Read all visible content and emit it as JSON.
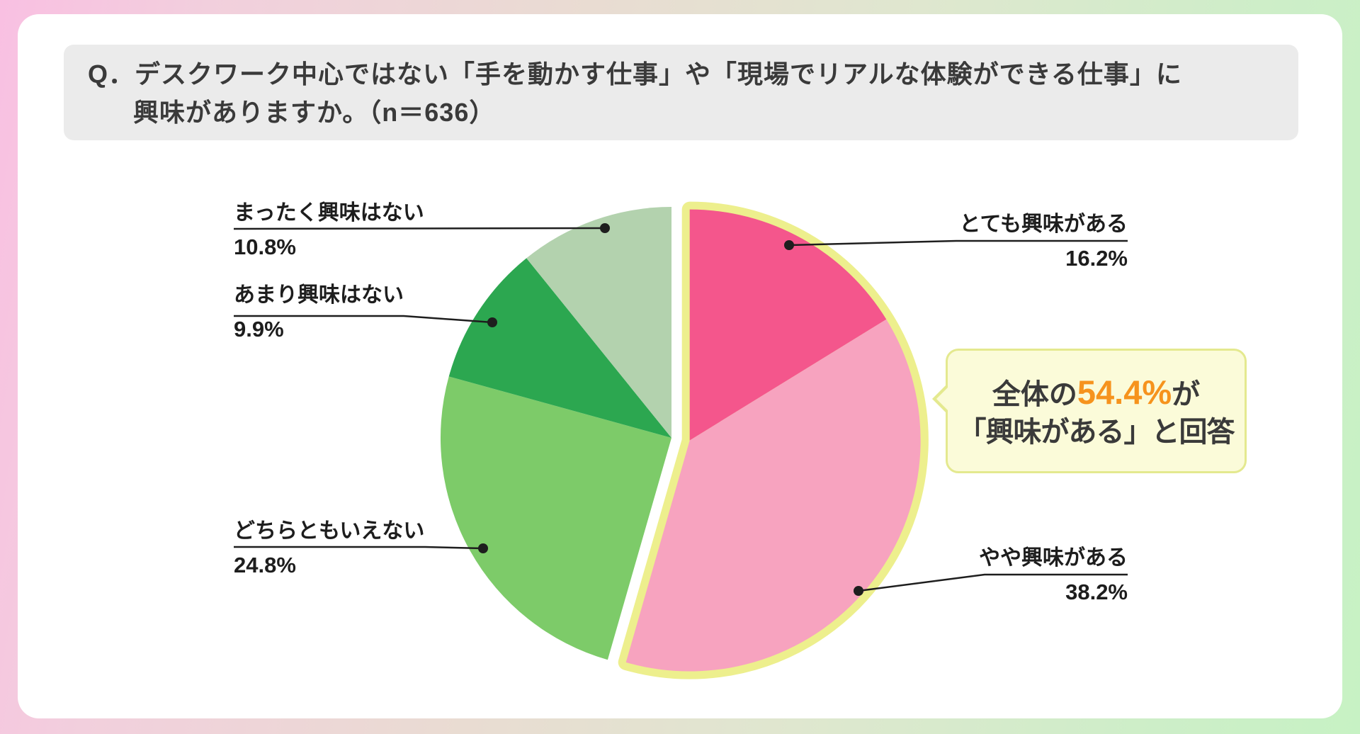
{
  "question": {
    "prefix": "Q．",
    "line1": "デスクワーク中心ではない「手を動かす仕事」や「現場でリアルな体験ができる仕事」に",
    "line2": "興味がありますか。（n＝636）"
  },
  "chart_data": {
    "type": "pie",
    "title": "デスクワーク中心ではない「手を動かす仕事」や「現場でリアルな体験ができる仕事」に興味がありますか。",
    "sample_size_label": "（n＝636）",
    "n": 636,
    "start_angle_deg": 0,
    "direction": "clockwise",
    "slices": [
      {
        "label": "とても興味がある",
        "value": 16.2,
        "pct": "16.2%",
        "color": "#f4568c",
        "exploded": true
      },
      {
        "label": "やや興味がある",
        "value": 38.2,
        "pct": "38.2%",
        "color": "#f7a3bf",
        "exploded": true
      },
      {
        "label": "どちらともいえない",
        "value": 24.8,
        "pct": "24.8%",
        "color": "#7dcb69",
        "exploded": false
      },
      {
        "label": "あまり興味はない",
        "value": 9.9,
        "pct": "9.9%",
        "color": "#2ca750",
        "exploded": false
      },
      {
        "label": "まったく興味はない",
        "value": 10.8,
        "pct": "10.8%",
        "color": "#b3d2ae",
        "exploded": false
      }
    ],
    "highlight_outline_color": "#edef8d",
    "legend_position": "none",
    "callout": {
      "text_before": "全体の",
      "highlight_value": "54.4%",
      "text_after": "が",
      "line2": "「興味がある」と回答",
      "highlight_color": "#f6931d",
      "bg_color": "#fbfbd9",
      "border_color": "#e4e98f"
    }
  },
  "colors": {
    "question_box_bg": "#ebebeb",
    "card_bg": "#ffffff",
    "text": "#3a3a3a",
    "leader_line": "#1e1e1e"
  }
}
